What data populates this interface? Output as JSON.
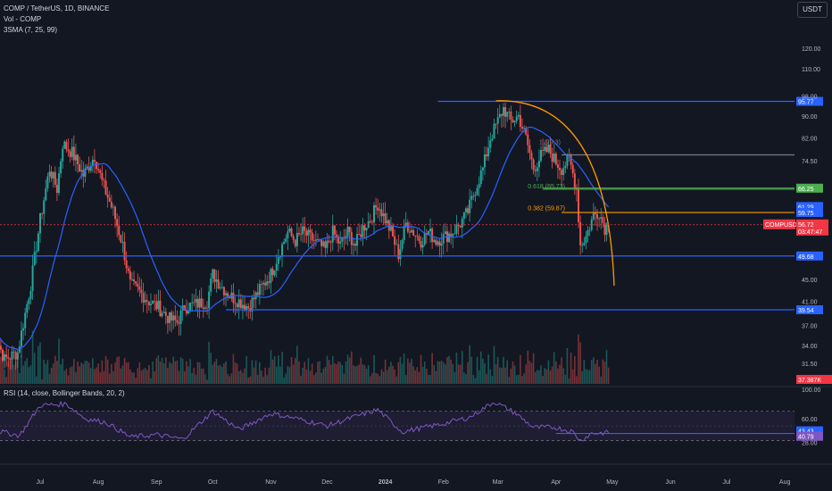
{
  "header": {
    "symbol_line": "COMP / TetherUS, 1D, BINANCE",
    "volume_line": "Vol - COMP",
    "sma_line": "3SMA (7, 25, 99)",
    "currency_button": "USDT"
  },
  "rsi_legend": "RSI (14, close, Bollinger Bands, 20, 2)",
  "colors": {
    "background": "#131722",
    "up": "#26a69a",
    "down": "#ef5350",
    "sma": "#2962ff",
    "level_blue": "#2962ff",
    "fib_orange": "#ff9800",
    "arc_orange": "#ff9800",
    "rsi_line": "#7e57c2",
    "rsi_band": "#7e57c2",
    "current_price": "#f23645",
    "level_gray": "#787b86",
    "level_green": "#4caf50"
  },
  "chart_data": [
    {
      "type": "candlestick",
      "pair": "COMP / TetherUS",
      "timeframe": "1D",
      "exchange": "BINANCE",
      "x_axis_labels": [
        "Jul",
        "Aug",
        "Sep",
        "Oct",
        "Nov",
        "Dec",
        "2024",
        "Feb",
        "Mar",
        "Apr",
        "May",
        "Jun",
        "Jul",
        "Aug"
      ],
      "x_axis_dates": [
        "2023-07-01",
        "2023-08-01",
        "2023-09-01",
        "2023-10-01",
        "2023-11-01",
        "2023-12-01",
        "2024-01-01",
        "2024-02-01",
        "2024-03-01",
        "2024-04-01",
        "2024-05-01",
        "2024-06-01",
        "2024-07-01",
        "2024-08-01"
      ],
      "x_range": [
        "2023-06-05",
        "2024-08-24"
      ],
      "y_axis_scale": "log",
      "y_axis_ticks": [
        "120.00",
        "110.00",
        "98.00",
        "90.00",
        "82.00",
        "74.50",
        "66.25",
        "61.29",
        "59.75",
        "56.72",
        "49.68",
        "45.00",
        "41.00",
        "39.54",
        "37.00",
        "34.00",
        "31.50"
      ],
      "price_path": [
        [
          "2023-06-05",
          37
        ],
        [
          "2023-06-12",
          32
        ],
        [
          "2023-06-19",
          33
        ],
        [
          "2023-06-26",
          44
        ],
        [
          "2023-07-01",
          58
        ],
        [
          "2023-07-06",
          72
        ],
        [
          "2023-07-10",
          66
        ],
        [
          "2023-07-13",
          80
        ],
        [
          "2023-07-18",
          77
        ],
        [
          "2023-07-24",
          70
        ],
        [
          "2023-07-30",
          76
        ],
        [
          "2023-08-03",
          68
        ],
        [
          "2023-08-09",
          60
        ],
        [
          "2023-08-14",
          52
        ],
        [
          "2023-08-18",
          44
        ],
        [
          "2023-08-22",
          43
        ],
        [
          "2023-08-28",
          41
        ],
        [
          "2023-09-02",
          40
        ],
        [
          "2023-09-08",
          38
        ],
        [
          "2023-09-12",
          37.5
        ],
        [
          "2023-09-16",
          40
        ],
        [
          "2023-09-22",
          40.5
        ],
        [
          "2023-09-28",
          41
        ],
        [
          "2023-10-01",
          46
        ],
        [
          "2023-10-05",
          44
        ],
        [
          "2023-10-10",
          42
        ],
        [
          "2023-10-15",
          41
        ],
        [
          "2023-10-20",
          40
        ],
        [
          "2023-10-26",
          43
        ],
        [
          "2023-11-01",
          46
        ],
        [
          "2023-11-05",
          50
        ],
        [
          "2023-11-10",
          55
        ],
        [
          "2023-11-14",
          53
        ],
        [
          "2023-11-18",
          55
        ],
        [
          "2023-11-24",
          53
        ],
        [
          "2023-11-30",
          51
        ],
        [
          "2023-12-04",
          55
        ],
        [
          "2023-12-08",
          52
        ],
        [
          "2023-12-12",
          55
        ],
        [
          "2023-12-16",
          52
        ],
        [
          "2023-12-20",
          56
        ],
        [
          "2023-12-24",
          58
        ],
        [
          "2023-12-28",
          62
        ],
        [
          "2024-01-01",
          58
        ],
        [
          "2024-01-04",
          55
        ],
        [
          "2024-01-08",
          50
        ],
        [
          "2024-01-12",
          57
        ],
        [
          "2024-01-16",
          55
        ],
        [
          "2024-01-20",
          53
        ],
        [
          "2024-01-24",
          55
        ],
        [
          "2024-01-28",
          53
        ],
        [
          "2024-02-02",
          54
        ],
        [
          "2024-02-06",
          55
        ],
        [
          "2024-02-10",
          57
        ],
        [
          "2024-02-14",
          60
        ],
        [
          "2024-02-18",
          66
        ],
        [
          "2024-02-22",
          72
        ],
        [
          "2024-02-26",
          82
        ],
        [
          "2024-03-01",
          88
        ],
        [
          "2024-03-04",
          93
        ],
        [
          "2024-03-08",
          88
        ],
        [
          "2024-03-12",
          90
        ],
        [
          "2024-03-16",
          82
        ],
        [
          "2024-03-20",
          72
        ],
        [
          "2024-03-24",
          76
        ],
        [
          "2024-03-28",
          78
        ],
        [
          "2024-04-01",
          74
        ],
        [
          "2024-04-04",
          72
        ],
        [
          "2024-04-08",
          75
        ],
        [
          "2024-04-12",
          66
        ],
        [
          "2024-04-14",
          52
        ],
        [
          "2024-04-17",
          54
        ],
        [
          "2024-04-21",
          59
        ],
        [
          "2024-04-24",
          60
        ],
        [
          "2024-04-27",
          56
        ],
        [
          "2024-04-29",
          56.72
        ]
      ],
      "series": [
        {
          "name": "3SMA (7, 25, 99)",
          "role": "moving average"
        }
      ],
      "last_price": 56.72,
      "current_price_label": "COMPUSDT",
      "countdown": "03:47:47",
      "volume_label": "37.387K",
      "horizontal_levels": [
        {
          "price": 95.77,
          "label": "95.77",
          "color": "#2962ff",
          "start": "2024-01-29"
        },
        {
          "price": 76.3,
          "label": "",
          "color": "#787b86",
          "start": "2024-04-04"
        },
        {
          "price": 66.25,
          "label": "66.25",
          "color": "#4caf50",
          "start": "2024-03-25"
        },
        {
          "price": 49.68,
          "label": "49.68",
          "color": "#2962ff",
          "start": "2023-06-05"
        },
        {
          "price": 39.54,
          "label": "39.54",
          "color": "#2962ff",
          "start": "2023-10-08"
        }
      ],
      "fib_levels": [
        {
          "ratio_label": "1 (79.3)",
          "price": 79.3
        },
        {
          "ratio_label": "0.618 (65.73)",
          "price": 65.73
        },
        {
          "ratio_label": "0.382 (59.87)",
          "price": 59.87
        }
      ],
      "fib_line_label": "59.75",
      "fib_line_price": 59.75,
      "green_level_labels": [
        "66.25",
        "61.29"
      ],
      "green_level_prices": [
        66.25,
        61.29
      ],
      "arc": {
        "from_date": "2024-02-29",
        "from_price": 96,
        "to_date": "2024-05-02",
        "to_price": 43.8,
        "color": "#ff9800"
      }
    },
    {
      "type": "line",
      "title": "RSI (14, close, Bollinger Bands, 20, 2)",
      "y_axis_ticks": [
        "100.00",
        "60.00",
        "28.00"
      ],
      "levels": [
        70,
        30
      ],
      "current_values": [
        43.43,
        40.79
      ],
      "current_labels": [
        "43.43",
        "40.79"
      ],
      "path": [
        [
          "2023-06-05",
          45
        ],
        [
          "2023-06-20",
          37
        ],
        [
          "2023-07-01",
          78
        ],
        [
          "2023-07-15",
          80
        ],
        [
          "2023-07-25",
          60
        ],
        [
          "2023-08-05",
          55
        ],
        [
          "2023-08-18",
          35
        ],
        [
          "2023-09-01",
          38
        ],
        [
          "2023-09-15",
          32
        ],
        [
          "2023-10-01",
          70
        ],
        [
          "2023-10-15",
          45
        ],
        [
          "2023-11-01",
          67
        ],
        [
          "2023-11-15",
          60
        ],
        [
          "2023-12-01",
          50
        ],
        [
          "2023-12-15",
          62
        ],
        [
          "2023-12-28",
          72
        ],
        [
          "2024-01-10",
          42
        ],
        [
          "2024-01-20",
          47
        ],
        [
          "2024-02-01",
          53
        ],
        [
          "2024-02-15",
          62
        ],
        [
          "2024-02-28",
          83
        ],
        [
          "2024-03-10",
          68
        ],
        [
          "2024-03-20",
          48
        ],
        [
          "2024-04-01",
          48
        ],
        [
          "2024-04-10",
          42
        ],
        [
          "2024-04-14",
          30
        ],
        [
          "2024-04-20",
          40
        ],
        [
          "2024-04-29",
          40.79
        ]
      ]
    }
  ]
}
